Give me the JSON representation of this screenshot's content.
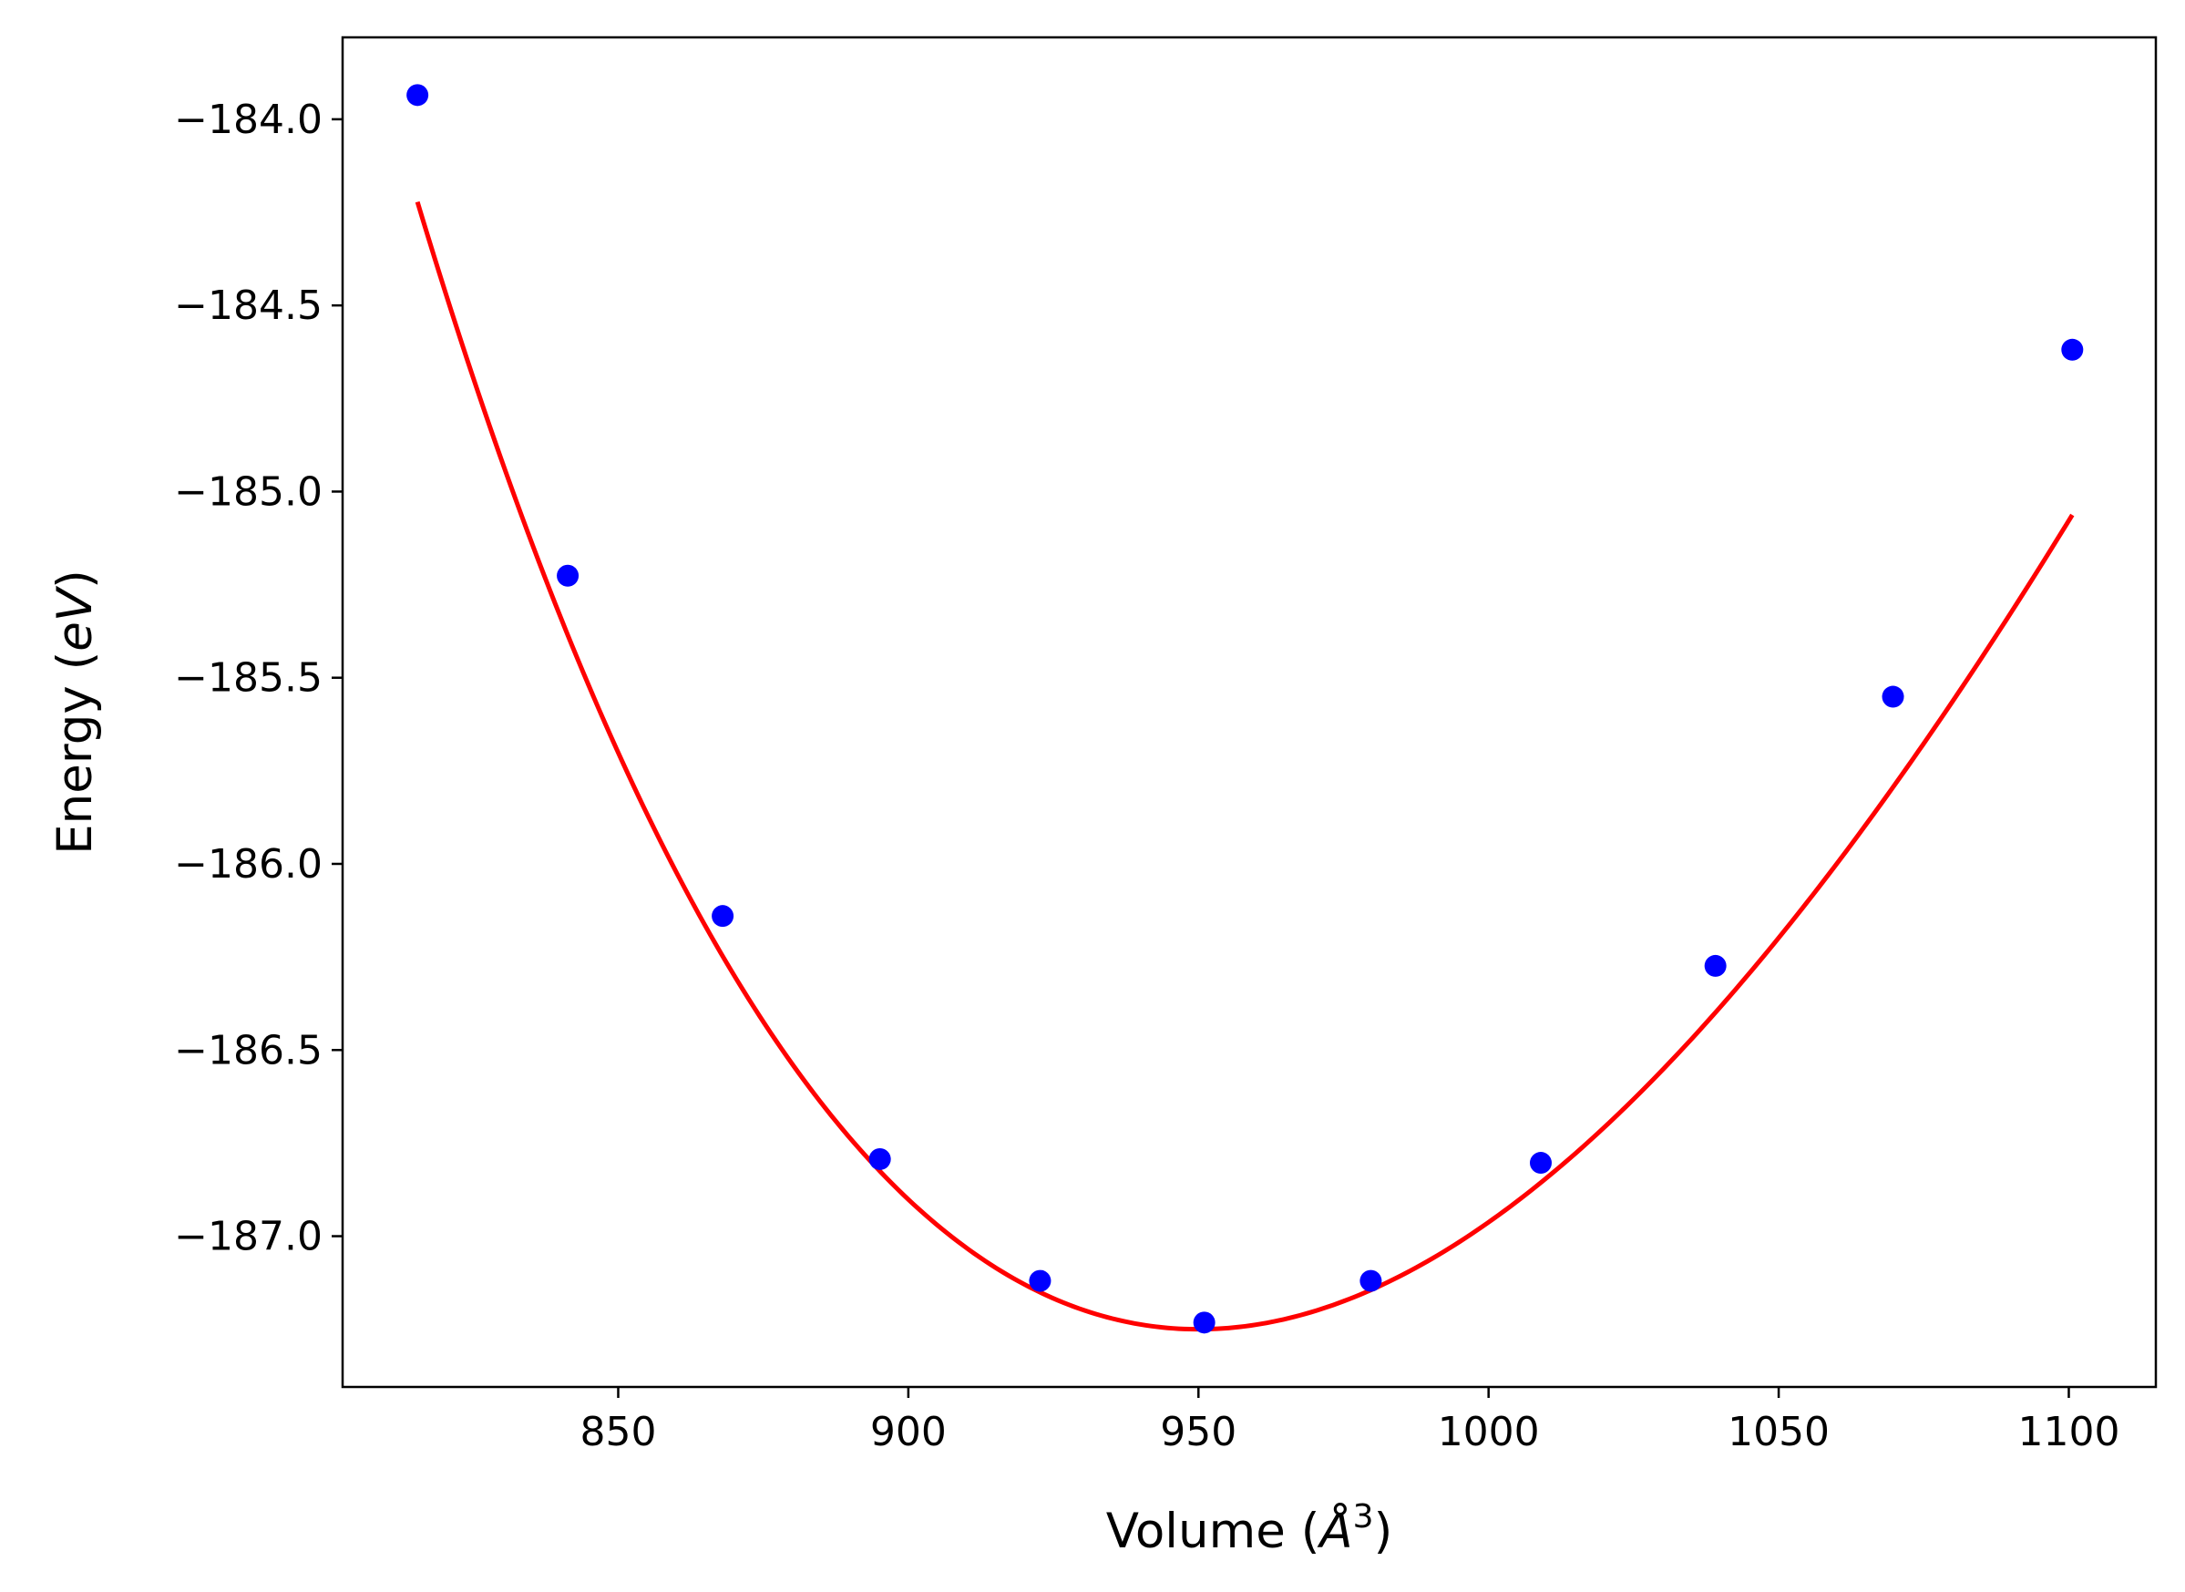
{
  "chart_data": {
    "type": "scatter",
    "title": "",
    "xlabel_main": "Volume (",
    "xlabel_unit": "Å",
    "xlabel_exp": "3",
    "xlabel_close": ")",
    "ylabel_main": "Energy (",
    "ylabel_unit": "eV",
    "ylabel_close": ")",
    "xlim": [
      802.5,
      1115
    ],
    "ylim": [
      -187.405,
      -183.78
    ],
    "x_ticks": [
      850,
      900,
      950,
      1000,
      1050,
      1100
    ],
    "x_tick_labels": [
      "850",
      "900",
      "950",
      "1000",
      "1050",
      "1100"
    ],
    "y_ticks": [
      -184.0,
      -184.5,
      -185.0,
      -185.5,
      -186.0,
      -186.5,
      -187.0
    ],
    "y_tick_labels": [
      "−184.0",
      "−184.5",
      "−185.0",
      "−185.5",
      "−186.0",
      "−186.5",
      "−187.0"
    ],
    "grid": false,
    "series": [
      {
        "kind": "points",
        "color": "#0000ff",
        "x": [
          815.4,
          841.3,
          868.0,
          895.1,
          922.7,
          951.0,
          979.7,
          1009.0,
          1039.1,
          1069.7,
          1100.6
        ],
        "y": [
          -183.935,
          -185.226,
          -186.14,
          -186.793,
          -187.12,
          -187.232,
          -187.12,
          -186.803,
          -186.274,
          -185.551,
          -184.619
        ]
      },
      {
        "kind": "fit",
        "color": "#ff0000",
        "x0": 815.4,
        "x1": 1100.6,
        "V0": 950,
        "E0": -187.25,
        "B": 0.24,
        "Bp": 4.5
      }
    ]
  }
}
